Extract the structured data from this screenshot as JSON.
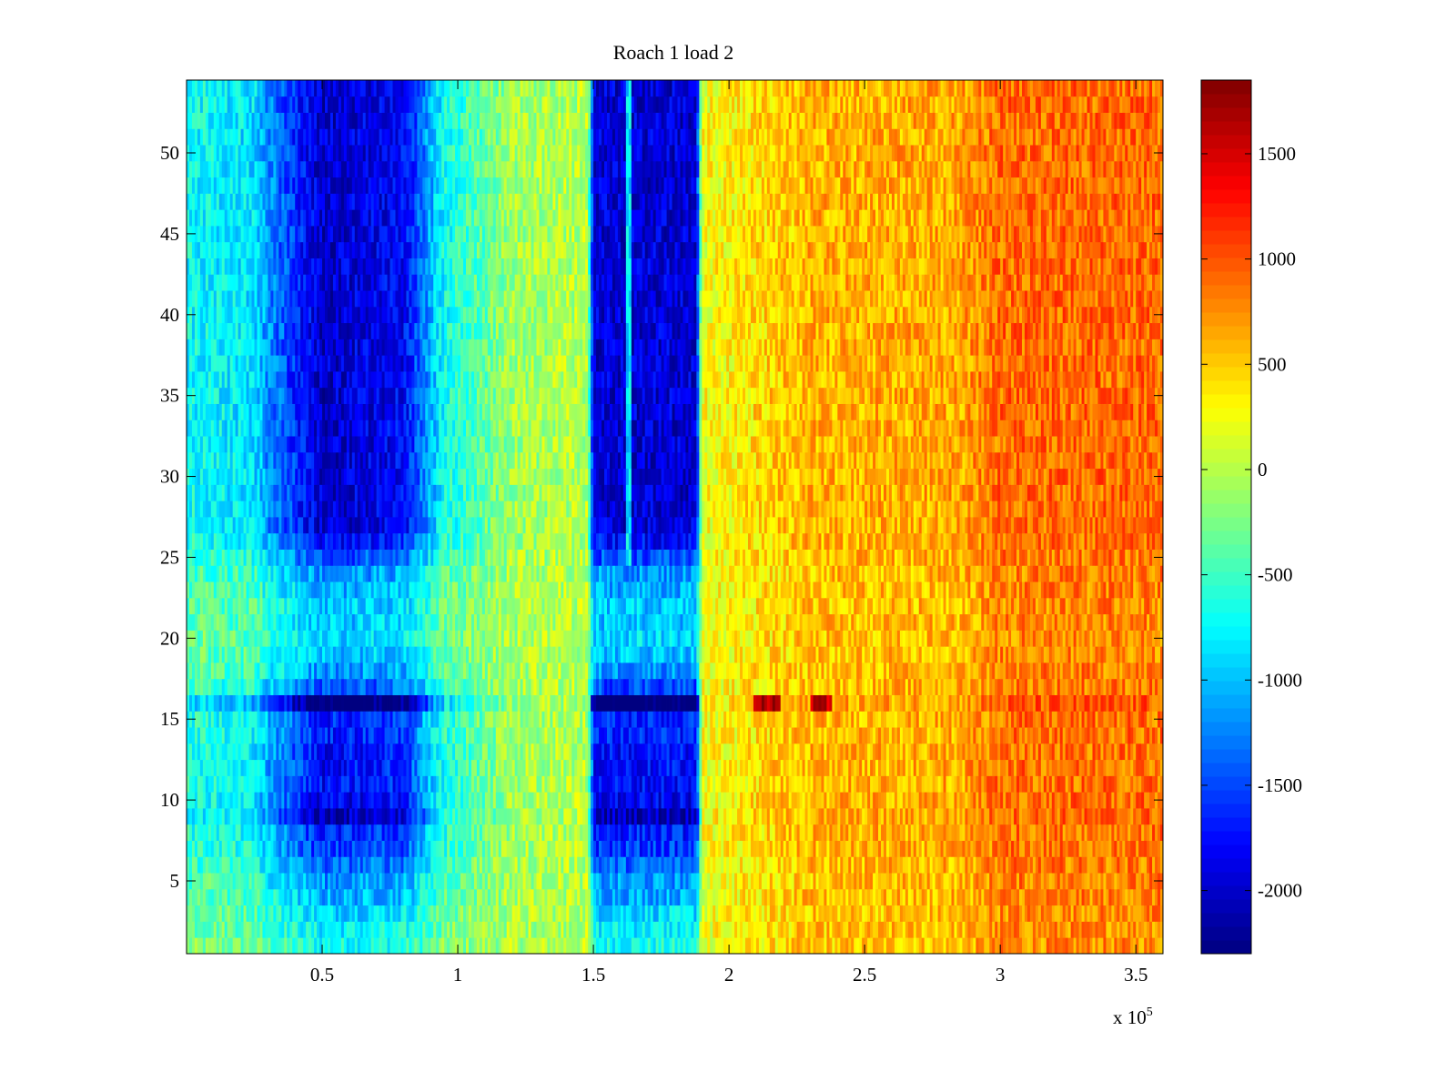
{
  "chart_data": {
    "type": "heatmap",
    "title": "Roach 1 load 2",
    "xlabel": "",
    "ylabel": "",
    "x_exponent_label": "x 10",
    "x_exponent_power": "5",
    "xlim": [
      0,
      3.6
    ],
    "ylim": [
      0.5,
      54.5
    ],
    "rows": 54,
    "columns": 360,
    "x_ticks": [
      0.5,
      1,
      1.5,
      2,
      2.5,
      3,
      3.5
    ],
    "x_tick_labels": [
      "0.5",
      "1",
      "1.5",
      "2",
      "2.5",
      "3",
      "3.5"
    ],
    "y_ticks": [
      5,
      10,
      15,
      20,
      25,
      30,
      35,
      40,
      45,
      50
    ],
    "y_tick_labels": [
      "5",
      "10",
      "15",
      "20",
      "25",
      "30",
      "35",
      "40",
      "45",
      "50"
    ],
    "colorbar": {
      "colormap": "jet",
      "clim": [
        -2300,
        1850
      ],
      "ticks": [
        -2000,
        -1500,
        -1000,
        -500,
        0,
        500,
        1000,
        1500
      ],
      "tick_labels": [
        "-2000",
        "-1500",
        "-1000",
        "-500",
        "0",
        "500",
        "1000",
        "1500"
      ]
    },
    "column_profile_x": [
      0,
      0.25,
      0.3,
      0.5,
      0.8,
      0.95,
      1.2,
      1.48,
      1.5,
      1.88,
      1.9,
      2.3,
      2.85,
      3.0,
      3.6
    ],
    "column_profile_value": [
      -700,
      -850,
      -1200,
      -2000,
      -1800,
      -700,
      -100,
      0,
      -1950,
      -1950,
      250,
      600,
      650,
      900,
      900
    ],
    "row_scale": {
      "1": 0.35,
      "2": 0.4,
      "3": 0.45,
      "4": 0.55,
      "5": 0.6,
      "6": 0.7,
      "7": 0.8,
      "8": 0.85,
      "9": 1.05,
      "10": 0.95,
      "11": 0.9,
      "12": 0.9,
      "13": 0.9,
      "14": 0.85,
      "15": 0.85,
      "16": 1.25,
      "17": 0.75,
      "18": 0.6,
      "19": 0.5,
      "20": 0.45,
      "21": 0.5,
      "22": 0.5,
      "23": 0.55,
      "24": 0.6,
      "25": 0.75,
      "26": 0.9
    },
    "default_row_scale": 1.0,
    "notes": "Row 16 shows a strong horizontal band: deep blue on the left, dark red near x=2.1 and x=2.35. Narrow cyan stripe near x=1.63 in the upper half."
  }
}
